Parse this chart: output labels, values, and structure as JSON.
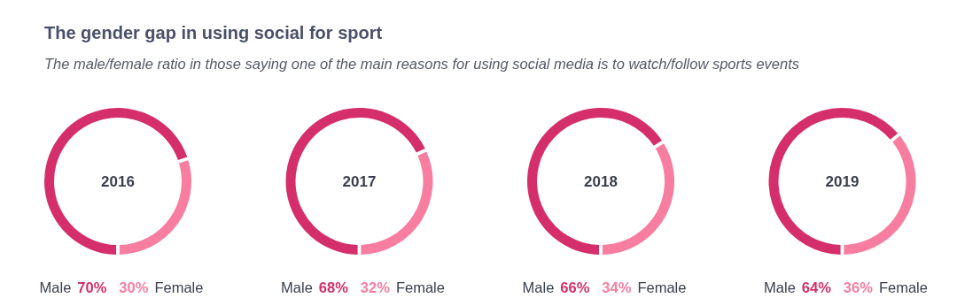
{
  "chart_data": [
    {
      "type": "other",
      "title": "The gender gap in using social for sport",
      "subtitle": "The male/female ratio in those saying one of the main reasons for using social media is to watch/follow sports events"
    },
    {
      "type": "donut",
      "title": "2016",
      "categories": [
        "Male",
        "Female"
      ],
      "values": [
        70,
        30
      ],
      "value_labels": [
        "70%",
        "30%"
      ],
      "colors": [
        "#d42f6a",
        "#f77ea0"
      ]
    },
    {
      "type": "donut",
      "title": "2017",
      "categories": [
        "Male",
        "Female"
      ],
      "values": [
        68,
        32
      ],
      "value_labels": [
        "68%",
        "32%"
      ],
      "colors": [
        "#d42f6a",
        "#f77ea0"
      ]
    },
    {
      "type": "donut",
      "title": "2018",
      "categories": [
        "Male",
        "Female"
      ],
      "values": [
        66,
        34
      ],
      "value_labels": [
        "66%",
        "34%"
      ],
      "colors": [
        "#d42f6a",
        "#f77ea0"
      ]
    },
    {
      "type": "donut",
      "title": "2019",
      "categories": [
        "Male",
        "Female"
      ],
      "values": [
        64,
        36
      ],
      "value_labels": [
        "64%",
        "36%"
      ],
      "colors": [
        "#d42f6a",
        "#f77ea0"
      ]
    }
  ]
}
